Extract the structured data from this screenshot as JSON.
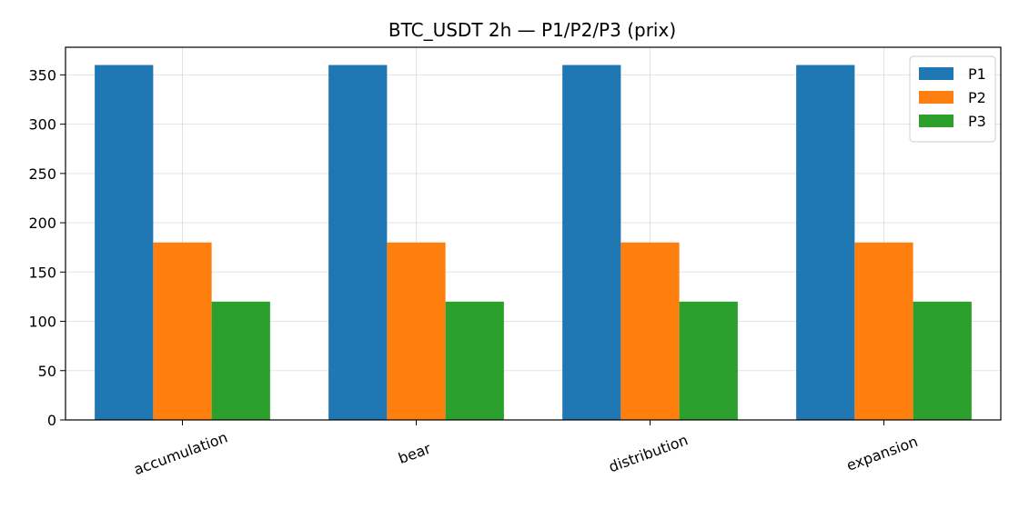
{
  "chart_data": {
    "type": "bar",
    "title": "BTC_USDT 2h — P1/P2/P3 (prix)",
    "xlabel": "",
    "ylabel": "",
    "categories": [
      "accumulation",
      "bear",
      "distribution",
      "expansion"
    ],
    "series": [
      {
        "name": "P1",
        "color": "#1f77b4",
        "values": [
          360,
          360,
          360,
          360
        ]
      },
      {
        "name": "P2",
        "color": "#ff7f0e",
        "values": [
          180,
          180,
          180,
          180
        ]
      },
      {
        "name": "P3",
        "color": "#2ca02c",
        "values": [
          120,
          120,
          120,
          120
        ]
      }
    ],
    "ylim": [
      0,
      378
    ],
    "yticks": [
      0,
      50,
      100,
      150,
      200,
      250,
      300,
      350
    ],
    "grid": true,
    "legend_position": "top-right"
  }
}
